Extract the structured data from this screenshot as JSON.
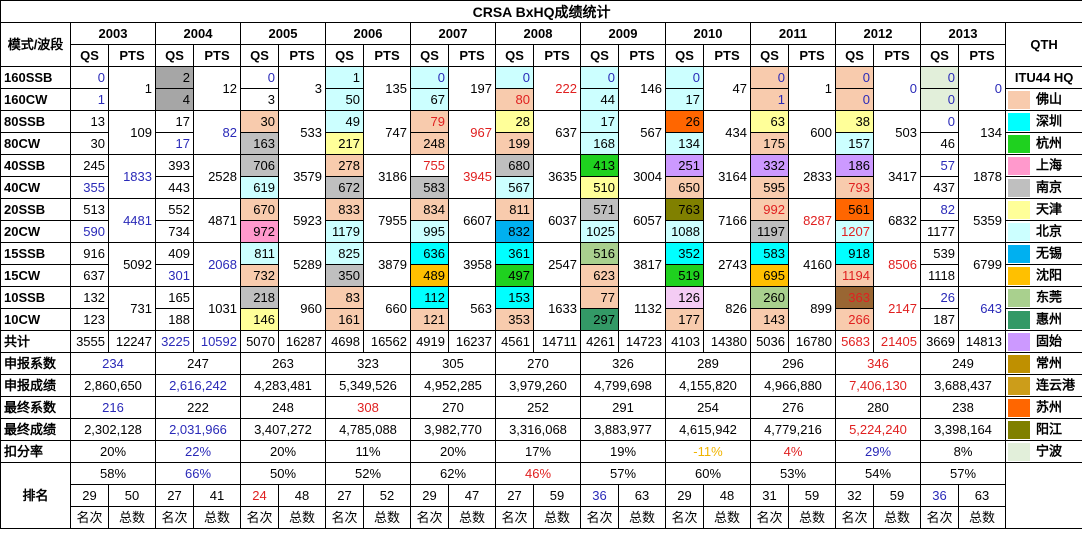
{
  "title": "CRSA BxHQ成绩统计",
  "header": {
    "mode_band": "模式/波段",
    "qs": "QS",
    "pts": "PTS",
    "qth": "QTH",
    "itu": "ITU44 HQ"
  },
  "bands": [
    "160SSB",
    "160CW",
    "80SSB",
    "80CW",
    "40SSB",
    "40CW",
    "20SSB",
    "20CW",
    "15SSB",
    "15CW",
    "10SSB",
    "10CW"
  ],
  "row_labels": {
    "total": "共计",
    "declared_coef": "申报系数",
    "declared_score": "申报成绩",
    "final_coef": "最终系数",
    "final_score": "最终成绩",
    "deduction": "扣分率",
    "ranking": "排名"
  },
  "rank_headers": [
    "名次",
    "总数"
  ],
  "years": [
    {
      "year": "2003",
      "qs": [
        "0",
        "1",
        "13",
        "30",
        "245",
        "355",
        "513",
        "590",
        "916",
        "637",
        "132",
        "123"
      ],
      "pts": [
        "1",
        "109",
        "1833",
        "4481",
        "5092",
        "731"
      ],
      "total_qs": "3555",
      "total_pts": "12247",
      "declared_coef": "234",
      "declared_score": "2,860,650",
      "final_coef": "216",
      "final_score": "2,302,128",
      "deduction": "20%",
      "pct": "58%",
      "rank": "29",
      "count": "50"
    },
    {
      "year": "2004",
      "qs": [
        "2",
        "4",
        "17",
        "17",
        "393",
        "443",
        "552",
        "734",
        "409",
        "301",
        "165",
        "188"
      ],
      "pts": [
        "12",
        "82",
        "2528",
        "4871",
        "2068",
        "1031"
      ],
      "total_qs": "3225",
      "total_pts": "10592",
      "declared_coef": "247",
      "declared_score": "2,616,242",
      "final_coef": "222",
      "final_score": "2,031,966",
      "deduction": "22%",
      "pct": "66%",
      "rank": "27",
      "count": "41"
    },
    {
      "year": "2005",
      "qs": [
        "0",
        "3",
        "30",
        "163",
        "706",
        "619",
        "670",
        "972",
        "811",
        "732",
        "218",
        "146"
      ],
      "pts": [
        "3",
        "533",
        "3579",
        "5923",
        "5289",
        "960"
      ],
      "total_qs": "5070",
      "total_pts": "16287",
      "declared_coef": "263",
      "declared_score": "4,283,481",
      "final_coef": "248",
      "final_score": "3,407,272",
      "deduction": "20%",
      "pct": "50%",
      "rank": "24",
      "count": "48"
    },
    {
      "year": "2006",
      "qs": [
        "1",
        "50",
        "49",
        "217",
        "278",
        "672",
        "833",
        "1179",
        "825",
        "350",
        "83",
        "161"
      ],
      "pts": [
        "135",
        "747",
        "3186",
        "7955",
        "3879",
        "660"
      ],
      "total_qs": "4698",
      "total_pts": "16562",
      "declared_coef": "323",
      "declared_score": "5,349,526",
      "final_coef": "308",
      "final_score": "4,785,088",
      "deduction": "11%",
      "pct": "52%",
      "rank": "27",
      "count": "52"
    },
    {
      "year": "2007",
      "qs": [
        "0",
        "67",
        "79",
        "248",
        "755",
        "583",
        "834",
        "995",
        "636",
        "489",
        "112",
        "121"
      ],
      "pts": [
        "197",
        "967",
        "3945",
        "6607",
        "3958",
        "563"
      ],
      "total_qs": "4919",
      "total_pts": "16237",
      "declared_coef": "305",
      "declared_score": "4,952,285",
      "final_coef": "270",
      "final_score": "3,982,770",
      "deduction": "20%",
      "pct": "62%",
      "rank": "29",
      "count": "47"
    },
    {
      "year": "2008",
      "qs": [
        "0",
        "80",
        "28",
        "199",
        "680",
        "567",
        "811",
        "832",
        "361",
        "497",
        "153",
        "353"
      ],
      "pts": [
        "222",
        "637",
        "3635",
        "6037",
        "2547",
        "1633"
      ],
      "total_qs": "4561",
      "total_pts": "14711",
      "declared_coef": "270",
      "declared_score": "3,979,260",
      "final_coef": "252",
      "final_score": "3,316,068",
      "deduction": "17%",
      "pct": "46%",
      "rank": "27",
      "count": "59"
    },
    {
      "year": "2009",
      "qs": [
        "0",
        "44",
        "17",
        "168",
        "413",
        "510",
        "571",
        "1025",
        "516",
        "623",
        "77",
        "297"
      ],
      "pts": [
        "146",
        "567",
        "3004",
        "6057",
        "3817",
        "1132"
      ],
      "total_qs": "4261",
      "total_pts": "14723",
      "declared_coef": "326",
      "declared_score": "4,799,698",
      "final_coef": "291",
      "final_score": "3,883,977",
      "deduction": "19%",
      "pct": "57%",
      "rank": "36",
      "count": "63"
    },
    {
      "year": "2010",
      "qs": [
        "0",
        "17",
        "26",
        "134",
        "251",
        "650",
        "763",
        "1088",
        "352",
        "519",
        "126",
        "177"
      ],
      "pts": [
        "47",
        "434",
        "3164",
        "7166",
        "2743",
        "826"
      ],
      "total_qs": "4103",
      "total_pts": "14380",
      "declared_coef": "289",
      "declared_score": "4,155,820",
      "final_coef": "254",
      "final_score": "4,615,942",
      "deduction": "-11%",
      "pct": "60%",
      "rank": "29",
      "count": "48"
    },
    {
      "year": "2011",
      "qs": [
        "0",
        "1",
        "63",
        "175",
        "332",
        "595",
        "992",
        "1197",
        "583",
        "695",
        "260",
        "143"
      ],
      "pts": [
        "1",
        "600",
        "2833",
        "8287",
        "4160",
        "899"
      ],
      "total_qs": "5036",
      "total_pts": "16780",
      "declared_coef": "296",
      "declared_score": "4,966,880",
      "final_coef": "276",
      "final_score": "4,779,216",
      "deduction": "4%",
      "pct": "53%",
      "rank": "31",
      "count": "59"
    },
    {
      "year": "2012",
      "qs": [
        "0",
        "0",
        "38",
        "157",
        "186",
        "793",
        "561",
        "1207",
        "918",
        "1194",
        "363",
        "266"
      ],
      "pts": [
        "0",
        "503",
        "3417",
        "6832",
        "8506",
        "2147"
      ],
      "total_qs": "5683",
      "total_pts": "21405",
      "declared_coef": "346",
      "declared_score": "7,406,130",
      "final_coef": "280",
      "final_score": "5,224,240",
      "deduction": "29%",
      "pct": "54%",
      "rank": "32",
      "count": "59"
    },
    {
      "year": "2013",
      "qs": [
        "0",
        "0",
        "0",
        "46",
        "57",
        "437",
        "82",
        "1177",
        "539",
        "1118",
        "26",
        "187"
      ],
      "pts": [
        "0",
        "134",
        "1878",
        "5359",
        "6799",
        "643"
      ],
      "total_qs": "3669",
      "total_pts": "14813",
      "declared_coef": "249",
      "declared_score": "3,688,437",
      "final_coef": "238",
      "final_score": "3,398,164",
      "deduction": "8%",
      "pct": "57%",
      "rank": "36",
      "count": "63"
    }
  ],
  "qth_legend": [
    "佛山",
    "深圳",
    "杭州",
    "上海",
    "南京",
    "天津",
    "北京",
    "无锡",
    "沈阳",
    "东莞",
    "惠州",
    "固始",
    "常州",
    "连云港",
    "苏州",
    "阳江",
    "宁波"
  ]
}
